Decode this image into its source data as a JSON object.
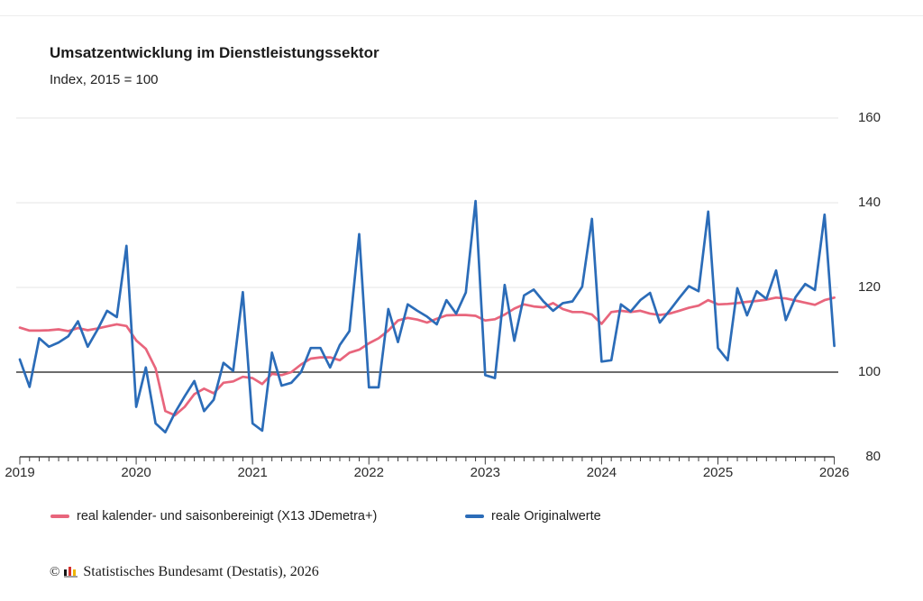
{
  "header": {
    "title": "Umsatzentwicklung im Dienstleistungssektor",
    "subtitle": "Index, 2015 = 100"
  },
  "chart_data": {
    "type": "line",
    "title": "Umsatzentwicklung im Dienstleistungssektor",
    "subtitle": "Index, 2015 = 100",
    "x_unit": "month",
    "x_range": [
      "2019-01",
      "2026-01"
    ],
    "x_tick_labels": [
      "2019",
      "2020",
      "2021",
      "2022",
      "2023",
      "2024",
      "2025",
      "2026"
    ],
    "y_ticks": [
      160,
      140,
      120,
      100,
      80
    ],
    "ylim": [
      80,
      163
    ],
    "reference_line": 100,
    "grid": "horizontal",
    "legend_position": "bottom",
    "series": [
      {
        "name": "real kalender- und saisonbereinigt (X13 JDemetra+)",
        "color": "#e8657c",
        "values": [
          110.5,
          109.8,
          109.8,
          109.9,
          110.1,
          109.7,
          110.4,
          109.9,
          110.3,
          110.8,
          111.3,
          110.9,
          107.5,
          105.5,
          100.9,
          90.8,
          89.8,
          91.8,
          94.8,
          96.1,
          95.0,
          97.5,
          97.8,
          98.9,
          98.6,
          97.2,
          99.6,
          99.3,
          100.0,
          101.8,
          103.2,
          103.5,
          103.5,
          102.8,
          104.6,
          105.3,
          106.8,
          108.0,
          109.8,
          112.2,
          112.8,
          112.4,
          111.7,
          112.6,
          113.4,
          113.5,
          113.5,
          113.3,
          112.2,
          112.5,
          113.6,
          115.0,
          116.0,
          115.5,
          115.3,
          116.3,
          114.9,
          114.2,
          114.2,
          113.6,
          111.4,
          114.2,
          114.5,
          114.2,
          114.5,
          113.8,
          113.5,
          113.8,
          114.5,
          115.2,
          115.7,
          117.0,
          116.0,
          116.1,
          116.3,
          116.6,
          116.8,
          117.1,
          117.6,
          117.4,
          116.9,
          116.4,
          115.9,
          117.0,
          117.6
        ]
      },
      {
        "name": "reale Originalwerte",
        "color": "#2b6cb8",
        "values": [
          103.0,
          96.5,
          108.0,
          106.0,
          107.0,
          108.5,
          112.0,
          106.0,
          110.0,
          114.5,
          113.0,
          129.8,
          91.8,
          101.1,
          87.9,
          85.8,
          90.4,
          94.3,
          97.9,
          90.8,
          93.5,
          102.2,
          100.3,
          118.9,
          87.9,
          86.2,
          104.6,
          96.8,
          97.5,
          100.0,
          105.7,
          105.7,
          101.1,
          106.4,
          109.7,
          132.6,
          96.4,
          96.4,
          114.9,
          107.1,
          116.0,
          114.5,
          113.1,
          111.3,
          117.0,
          113.8,
          118.8,
          140.4,
          99.3,
          98.6,
          120.6,
          107.4,
          118.1,
          119.5,
          116.7,
          114.5,
          116.3,
          116.7,
          120.2,
          136.2,
          102.5,
          102.8,
          116.0,
          114.3,
          117.0,
          118.7,
          111.7,
          114.5,
          117.5,
          120.3,
          119.1,
          137.9,
          105.7,
          102.8,
          119.8,
          113.4,
          119.1,
          117.3,
          124.0,
          112.3,
          117.7,
          120.8,
          119.4,
          137.2,
          106.2
        ]
      }
    ]
  },
  "legend": {
    "items": [
      {
        "label": "real kalender- und saisonbereinigt (X13 JDemetra+)",
        "color": "#e8657c"
      },
      {
        "label": "reale Originalwerte",
        "color": "#2b6cb8"
      }
    ]
  },
  "footer": {
    "copyright_symbol": "©",
    "source_text": "Statistisches Bundesamt (Destatis), 2026",
    "logo_bar_colors": [
      "#161615",
      "#d3312e",
      "#f0b500"
    ],
    "logo_base_color": "#9e9e9e"
  }
}
